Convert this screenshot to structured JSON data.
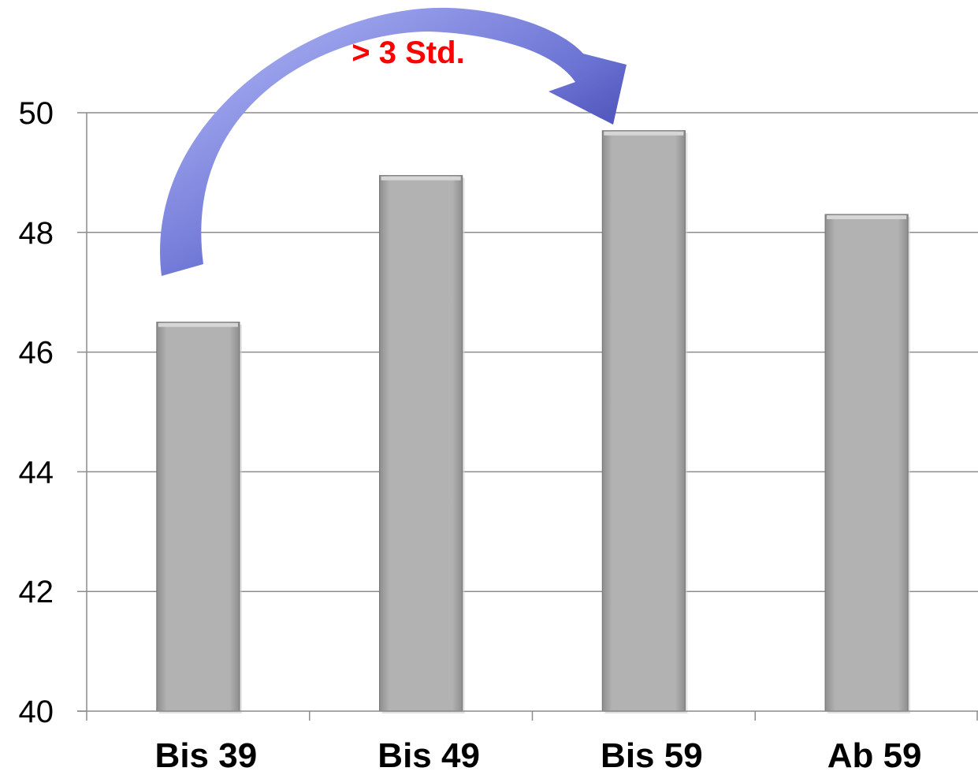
{
  "chart_data": {
    "type": "bar",
    "categories": [
      "Bis 39",
      "Bis 49",
      "Bis 59",
      "Ab 59"
    ],
    "values": [
      46.5,
      48.95,
      49.7,
      48.3
    ],
    "ylim": [
      40,
      50
    ],
    "yticks": [
      "40",
      "42",
      "44",
      "46",
      "48",
      "50"
    ],
    "ytick_values": [
      40,
      42,
      44,
      46,
      48,
      50
    ],
    "grid": true,
    "legend": "none",
    "bar_color": "#aaaaaa",
    "annotation": {
      "text": "> 3 Std.",
      "from_category": "Bis 39",
      "to_category": "Bis 59",
      "color": "#ff0000",
      "arrow_color": "#2a2aa0"
    }
  }
}
